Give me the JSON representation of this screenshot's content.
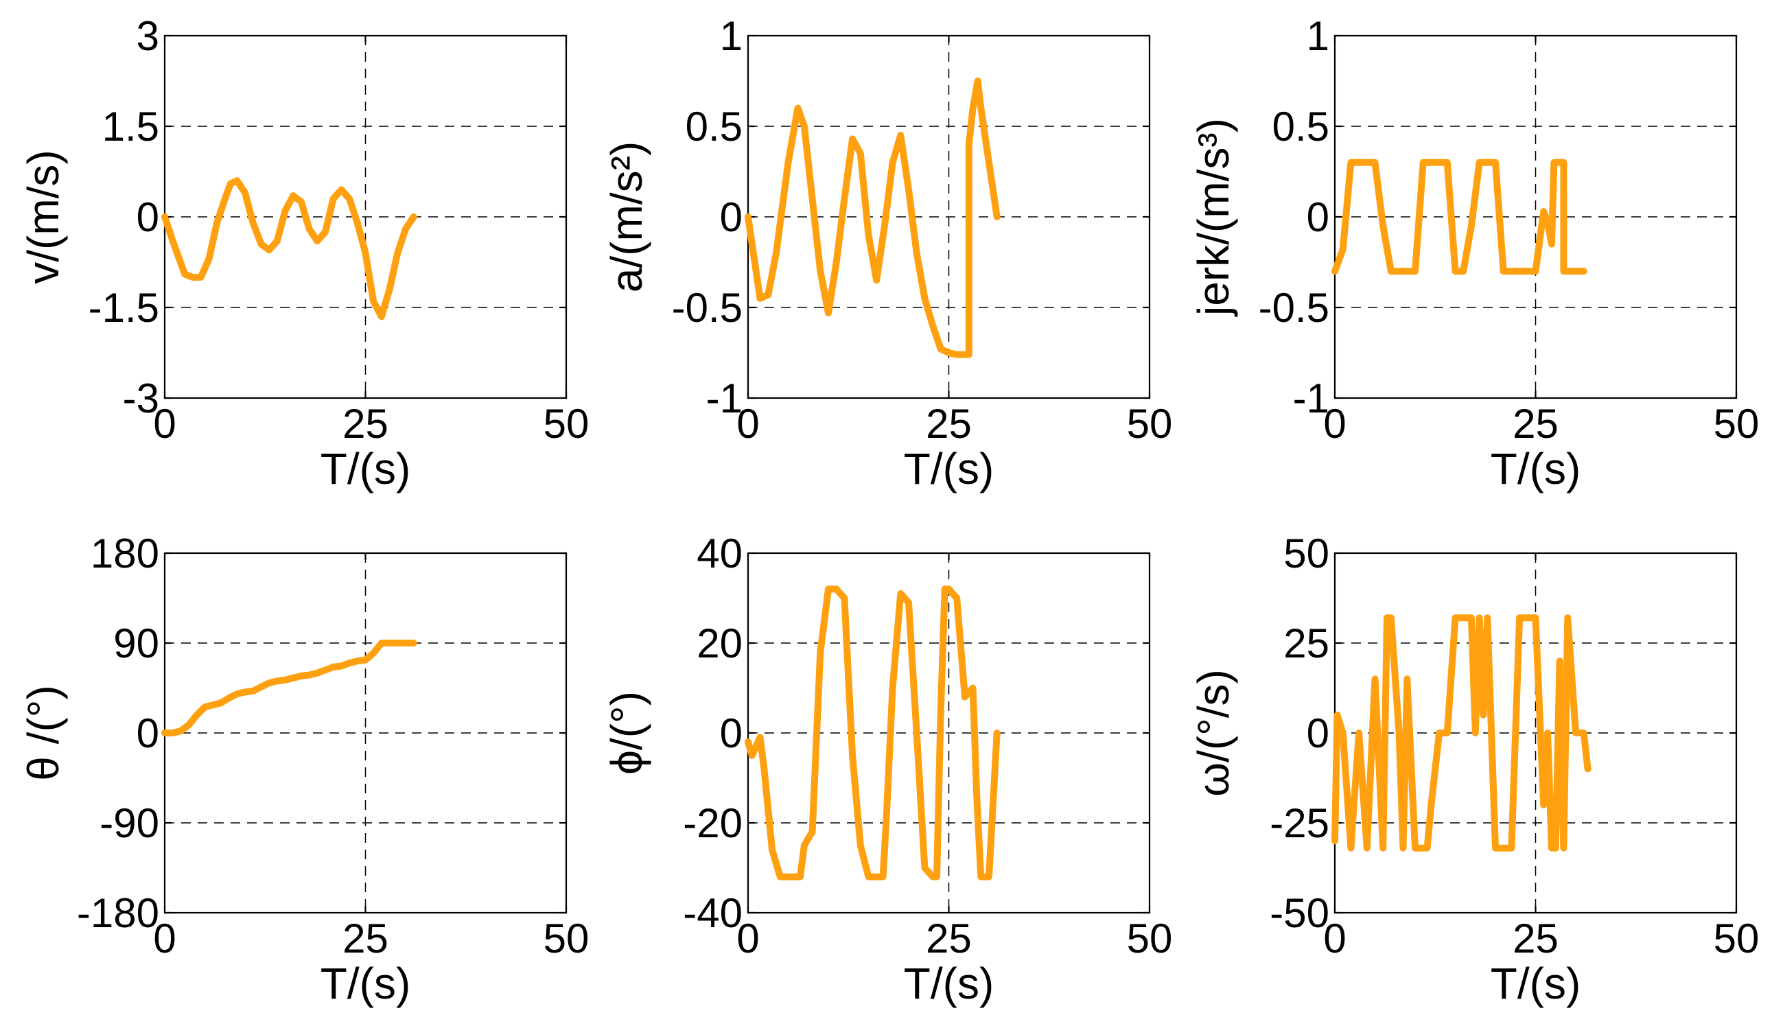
{
  "chart_data": [
    {
      "type": "line",
      "xlabel": "T/(s)",
      "ylabel": "v/(m/s)",
      "xlim": [
        0,
        50
      ],
      "ylim": [
        -3,
        3
      ],
      "xticks": [
        0,
        25,
        50
      ],
      "xtick_labels": [
        "0",
        "25",
        "50"
      ],
      "yticks": [
        -3,
        -1.5,
        0,
        1.5,
        3
      ],
      "ytick_labels": [
        "-3",
        "-1.5",
        "0",
        "1.5",
        "3"
      ],
      "grid": "dashed",
      "series": [
        {
          "name": "v",
          "color": "#FFA010",
          "x": [
            0,
            1,
            2.5,
            3.5,
            4.5,
            5.5,
            6.5,
            7.5,
            8.2,
            9,
            10,
            11,
            12,
            13,
            14,
            15,
            16,
            17,
            18,
            19,
            20,
            21,
            22,
            23,
            24,
            25,
            26,
            27,
            28,
            29,
            30,
            31
          ],
          "y": [
            0,
            -0.4,
            -0.95,
            -1.0,
            -1.0,
            -0.7,
            -0.1,
            0.3,
            0.55,
            0.6,
            0.4,
            -0.1,
            -0.45,
            -0.55,
            -0.4,
            0.1,
            0.35,
            0.25,
            -0.2,
            -0.4,
            -0.25,
            0.3,
            0.45,
            0.3,
            -0.1,
            -0.6,
            -1.4,
            -1.65,
            -1.2,
            -0.6,
            -0.2,
            0
          ]
        }
      ]
    },
    {
      "type": "line",
      "xlabel": "T/(s)",
      "ylabel": "a/(m/s²)",
      "xlim": [
        0,
        50
      ],
      "ylim": [
        -1,
        1
      ],
      "xticks": [
        0,
        25,
        50
      ],
      "xtick_labels": [
        "0",
        "25",
        "50"
      ],
      "yticks": [
        -1,
        -0.5,
        0,
        0.5,
        1
      ],
      "ytick_labels": [
        "-1",
        "-0.5",
        "0",
        "0.5",
        "1"
      ],
      "grid": "dashed",
      "series": [
        {
          "name": "a",
          "color": "#FFA010",
          "x": [
            0,
            1.5,
            2.5,
            3.5,
            5,
            6.2,
            7,
            8,
            9,
            10,
            11,
            12,
            13,
            14,
            15,
            16,
            17,
            18,
            19,
            20,
            21,
            22,
            23,
            24,
            25,
            26,
            27,
            27.5,
            27.5,
            28,
            28.6,
            29,
            30,
            31
          ],
          "y": [
            0,
            -0.45,
            -0.43,
            -0.2,
            0.3,
            0.6,
            0.5,
            0.1,
            -0.3,
            -0.53,
            -0.25,
            0.1,
            0.43,
            0.35,
            -0.1,
            -0.35,
            -0.05,
            0.3,
            0.45,
            0.15,
            -0.2,
            -0.45,
            -0.6,
            -0.73,
            -0.75,
            -0.76,
            -0.76,
            -0.76,
            0.4,
            0.6,
            0.75,
            0.6,
            0.3,
            0
          ]
        }
      ]
    },
    {
      "type": "line",
      "xlabel": "T/(s)",
      "ylabel": "jerk/(m/s³)",
      "xlim": [
        0,
        50
      ],
      "ylim": [
        -1,
        1
      ],
      "xticks": [
        0,
        25,
        50
      ],
      "xtick_labels": [
        "0",
        "25",
        "50"
      ],
      "yticks": [
        -1,
        -0.5,
        0,
        0.5,
        1
      ],
      "ytick_labels": [
        "-1",
        "-0.5",
        "0",
        "0.5",
        "1"
      ],
      "grid": "dashed",
      "series": [
        {
          "name": "jerk",
          "color": "#FFA010",
          "x": [
            0,
            1,
            2,
            3,
            4,
            5,
            6,
            7,
            8,
            9,
            10,
            11,
            12,
            13,
            14,
            15,
            16,
            17,
            18,
            19,
            20,
            21,
            22,
            23,
            24,
            25,
            26,
            26.5,
            27,
            27.3,
            27.5,
            28,
            28.5,
            28.5,
            29,
            30,
            31
          ],
          "y": [
            -0.3,
            -0.18,
            0.3,
            0.3,
            0.3,
            0.3,
            -0.05,
            -0.3,
            -0.3,
            -0.3,
            -0.3,
            0.3,
            0.3,
            0.3,
            0.3,
            -0.3,
            -0.3,
            -0.05,
            0.3,
            0.3,
            0.3,
            -0.3,
            -0.3,
            -0.3,
            -0.3,
            -0.3,
            0.03,
            -0.03,
            -0.15,
            0.3,
            0.3,
            0.3,
            0.3,
            -0.3,
            -0.3,
            -0.3,
            -0.3
          ]
        }
      ]
    },
    {
      "type": "line",
      "xlabel": "T/(s)",
      "ylabel": "θ /(°)",
      "xlim": [
        0,
        50
      ],
      "ylim": [
        -180,
        180
      ],
      "xticks": [
        0,
        25,
        50
      ],
      "xtick_labels": [
        "0",
        "25",
        "50"
      ],
      "yticks": [
        -180,
        -90,
        0,
        90,
        180
      ],
      "ytick_labels": [
        "-180",
        "-90",
        "0",
        "90",
        "180"
      ],
      "grid": "dashed",
      "series": [
        {
          "name": "theta",
          "color": "#FFA010",
          "x": [
            0,
            1,
            2,
            3,
            4,
            5,
            6,
            7,
            8,
            9,
            10,
            11,
            12,
            13,
            14,
            15,
            16,
            17,
            18,
            19,
            20,
            21,
            22,
            23,
            24,
            25,
            26,
            27,
            28,
            29,
            30,
            31
          ],
          "y": [
            0,
            0,
            2,
            8,
            18,
            26,
            28,
            30,
            35,
            39,
            41,
            42,
            46,
            50,
            52,
            53,
            55,
            57,
            58,
            60,
            63,
            66,
            67,
            70,
            72,
            73,
            80,
            90,
            90,
            90,
            90,
            90
          ]
        }
      ]
    },
    {
      "type": "line",
      "xlabel": "T/(s)",
      "ylabel": "ϕ/(°)",
      "xlim": [
        0,
        50
      ],
      "ylim": [
        -40,
        40
      ],
      "xticks": [
        0,
        25,
        50
      ],
      "xtick_labels": [
        "0",
        "25",
        "50"
      ],
      "yticks": [
        -40,
        -20,
        0,
        20,
        40
      ],
      "ytick_labels": [
        "-40",
        "-20",
        "0",
        "20",
        "40"
      ],
      "grid": "dashed",
      "series": [
        {
          "name": "phi",
          "color": "#FFA010",
          "x": [
            0,
            0.5,
            1,
            1.5,
            2,
            3,
            4,
            5,
            6,
            6.5,
            7,
            8,
            9,
            10,
            11,
            12,
            13,
            14,
            15,
            16,
            16.8,
            17.2,
            18,
            19,
            20,
            21,
            22,
            23,
            23.5,
            24,
            24.5,
            25,
            26,
            27,
            28,
            28.5,
            29,
            30,
            31
          ],
          "y": [
            -2,
            -5,
            -3,
            -1,
            -8,
            -26,
            -32,
            -32,
            -32,
            -32,
            -25,
            -22,
            18,
            32,
            32,
            30,
            -5,
            -25,
            -32,
            -32,
            -32,
            -20,
            10,
            31,
            29,
            0,
            -30,
            -32,
            -32,
            5,
            32,
            32,
            30,
            8,
            10,
            -15,
            -32,
            -32,
            0
          ]
        }
      ]
    },
    {
      "type": "line",
      "xlabel": "T/(s)",
      "ylabel": "ω/(°/s)",
      "xlim": [
        0,
        50
      ],
      "ylim": [
        -50,
        50
      ],
      "xticks": [
        0,
        25,
        50
      ],
      "xtick_labels": [
        "0",
        "25",
        "50"
      ],
      "yticks": [
        -50,
        -25,
        0,
        25,
        50
      ],
      "ytick_labels": [
        "-50",
        "-25",
        "0",
        "25",
        "50"
      ],
      "grid": "dashed",
      "series": [
        {
          "name": "omega",
          "color": "#FFA010",
          "x": [
            0,
            0.3,
            1,
            2,
            3,
            4,
            5,
            6,
            6.5,
            7,
            8,
            8.5,
            9,
            10,
            10.5,
            11,
            11.5,
            12,
            13,
            14,
            15,
            16,
            17,
            17.5,
            18,
            18.5,
            19,
            20,
            21,
            22,
            23,
            24,
            25,
            26,
            26.5,
            27,
            27.5,
            28,
            28.5,
            29,
            30,
            31,
            31.5
          ],
          "y": [
            -30,
            5,
            0,
            -32,
            0,
            -32,
            15,
            -32,
            32,
            32,
            0,
            -32,
            15,
            -32,
            -32,
            -32,
            -32,
            -20,
            0,
            0,
            32,
            32,
            32,
            0,
            32,
            5,
            32,
            -32,
            -32,
            -32,
            32,
            32,
            32,
            -20,
            0,
            -32,
            -32,
            20,
            -32,
            32,
            0,
            0,
            -10
          ]
        }
      ]
    }
  ]
}
